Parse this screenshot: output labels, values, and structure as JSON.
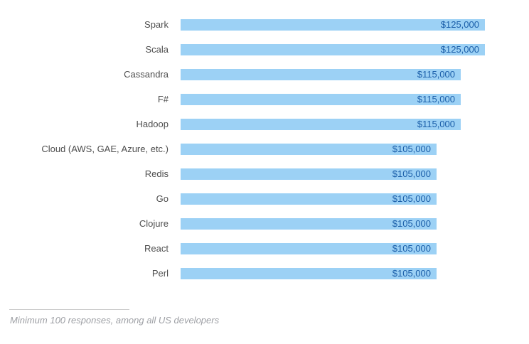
{
  "chart_data": {
    "type": "bar",
    "orientation": "horizontal",
    "title": "",
    "xlabel": "",
    "ylabel": "",
    "categories": [
      "Spark",
      "Scala",
      "Cassandra",
      "F#",
      "Hadoop",
      "Cloud (AWS, GAE, Azure, etc.)",
      "Redis",
      "Go",
      "Clojure",
      "React",
      "Perl"
    ],
    "values": [
      125000,
      125000,
      115000,
      115000,
      115000,
      105000,
      105000,
      105000,
      105000,
      105000,
      105000
    ],
    "value_labels": [
      "$125,000",
      "$125,000",
      "$115,000",
      "$115,000",
      "$115,000",
      "$105,000",
      "$105,000",
      "$105,000",
      "$105,000",
      "$105,000",
      "$105,000"
    ],
    "xlim": [
      0,
      125000
    ],
    "grid": false,
    "legend": false,
    "value_labels_position": "inside-end",
    "footnote": "Minimum 100 responses, among all US developers",
    "colors": {
      "bar_fill": "#9CD1F5",
      "value_text": "#1A5EA9",
      "category_text": "#4E4E4E",
      "footnote_text": "#9EA0A5",
      "divider": "#CCCCCC",
      "background": "#FFFFFF"
    }
  }
}
